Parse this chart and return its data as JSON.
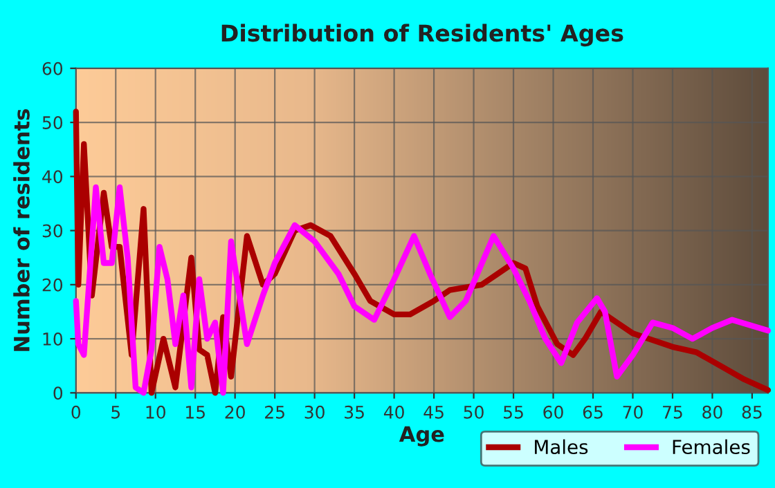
{
  "chart_data": {
    "type": "line",
    "title": "Distribution of Residents' Ages",
    "xlabel": "Age",
    "ylabel": "Number of residents",
    "xlim": [
      0,
      87
    ],
    "xticks": [
      0,
      5,
      10,
      15,
      20,
      25,
      30,
      35,
      40,
      45,
      50,
      55,
      60,
      65,
      70,
      75,
      80,
      85
    ],
    "ylim": [
      0,
      60
    ],
    "yticks": [
      0,
      10,
      20,
      30,
      40,
      50,
      60
    ],
    "grid": true,
    "legend": "bottom right",
    "marker": "none",
    "line_style": "solid",
    "series": [
      {
        "name": "Males",
        "color": "#aa0000",
        "x": [
          0,
          0.3,
          1,
          2,
          3.5,
          4.5,
          5.5,
          7,
          8.5,
          9.5,
          11,
          12.5,
          14.5,
          15.5,
          16.5,
          17.5,
          18.5,
          19.5,
          21.5,
          23.5,
          25,
          27.5,
          29.5,
          32,
          35,
          37,
          40,
          42,
          45,
          47,
          51,
          53,
          55,
          56.5,
          58,
          60.5,
          62.5,
          64,
          66,
          68,
          70,
          72,
          75,
          78,
          81,
          84,
          87
        ],
        "values": [
          52,
          20,
          46,
          18,
          37,
          27,
          27,
          7,
          34,
          0,
          10,
          1,
          25,
          8,
          7,
          0,
          14,
          3,
          29,
          20,
          22,
          30,
          31,
          29,
          22,
          17,
          14.5,
          14.5,
          17,
          19,
          20,
          22,
          24,
          23,
          16,
          9,
          7,
          10,
          15,
          13,
          11,
          10,
          8.5,
          7.5,
          5,
          2.5,
          0.5
        ]
      },
      {
        "name": "Females",
        "color": "#ff00ff",
        "x": [
          0,
          0.3,
          1,
          2.5,
          3.5,
          4.5,
          5.5,
          6.5,
          7.5,
          8.5,
          9.5,
          10.5,
          11.5,
          12.5,
          13.5,
          14.5,
          15.5,
          16.5,
          17.5,
          18.5,
          19.5,
          21.5,
          23.5,
          25,
          27.5,
          30,
          33,
          35,
          37.5,
          40,
          42.5,
          44.5,
          47,
          49,
          52.5,
          55,
          57,
          59,
          61,
          63,
          65.5,
          66.5,
          68,
          70,
          72.5,
          75,
          77.5,
          80,
          82.5,
          87
        ],
        "values": [
          17,
          9,
          7,
          38,
          24,
          24,
          38,
          25,
          1,
          0,
          8,
          27,
          21,
          9,
          18,
          1,
          21,
          10,
          13,
          0,
          28,
          9,
          18,
          24,
          31,
          28,
          22,
          16,
          13.5,
          21,
          29,
          22,
          14,
          17,
          29,
          23,
          17,
          10,
          5.5,
          13,
          17.5,
          15,
          3,
          7,
          13,
          12,
          10,
          12,
          13.5,
          11.5
        ]
      }
    ]
  }
}
